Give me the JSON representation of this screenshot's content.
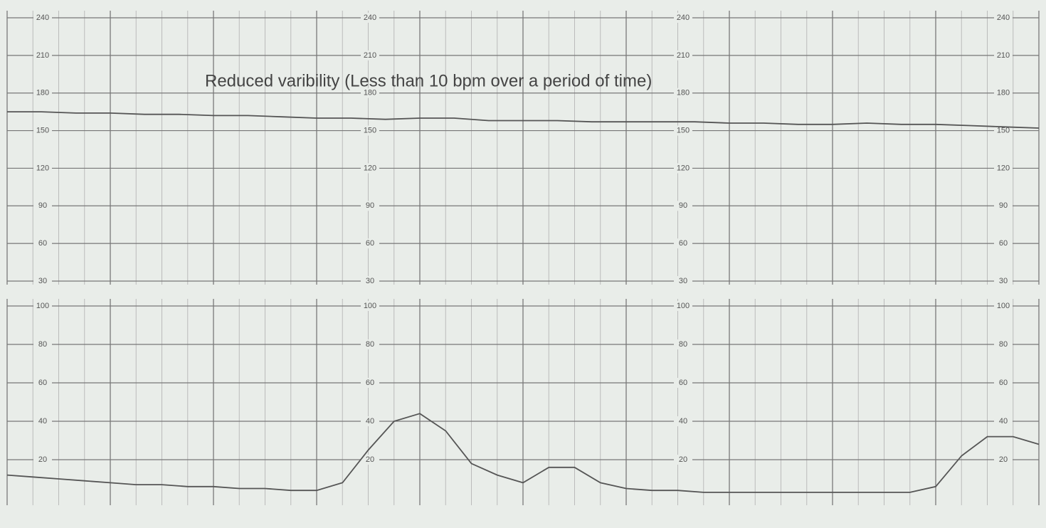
{
  "chart_data": [
    {
      "type": "line",
      "annotation": "Reduced varibility (Less than 10 bpm over a period of time)",
      "values": [
        165,
        165,
        164,
        164,
        163,
        163,
        162,
        162,
        161,
        160,
        160,
        159,
        160,
        160,
        158,
        158,
        158,
        157,
        157,
        157,
        157,
        156,
        156,
        155,
        155,
        156,
        155,
        155,
        154,
        153,
        152
      ],
      "color": "#555555",
      "ylim": [
        30,
        240
      ],
      "yticks": [
        30,
        60,
        90,
        120,
        150,
        180,
        210,
        240
      ],
      "grid": true
    },
    {
      "type": "line",
      "values": [
        12,
        11,
        10,
        9,
        8,
        7,
        7,
        6,
        6,
        5,
        5,
        4,
        4,
        8,
        25,
        40,
        44,
        35,
        18,
        12,
        8,
        16,
        16,
        8,
        5,
        4,
        4,
        3,
        3,
        3,
        3,
        3,
        3,
        3,
        3,
        3,
        6,
        22,
        32,
        32,
        28
      ],
      "color": "#555555",
      "ylim": [
        0,
        100
      ],
      "yticks": [
        20,
        40,
        60,
        80,
        100
      ],
      "grid": true
    }
  ]
}
